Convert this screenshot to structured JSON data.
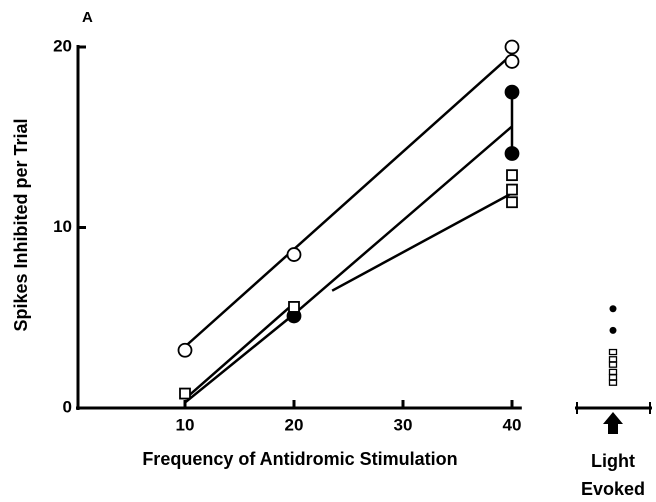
{
  "chart_data": {
    "type": "scatter",
    "panel_label": "A",
    "x_label": "Frequency of Antidromic Stimulation",
    "y_label": "Spikes Inhibited per Trial",
    "xlim": [
      0,
      42
    ],
    "ylim": [
      0,
      20
    ],
    "xticks": [
      10,
      20,
      30,
      40
    ],
    "yticks": [
      0,
      10,
      20
    ],
    "series": [
      {
        "marker": "line",
        "x": [
          10,
          40
        ],
        "values": [
          3.4,
          19.6
        ]
      },
      {
        "marker": "line",
        "x": [
          10,
          20,
          40
        ],
        "values": [
          0.3,
          5.2,
          15.6
        ]
      },
      {
        "marker": "line",
        "x": [
          10,
          20
        ],
        "values": [
          0.5,
          5.8
        ]
      },
      {
        "marker": "line",
        "x": [
          23.5,
          40
        ],
        "values": [
          6.5,
          11.9
        ]
      },
      {
        "marker": "line",
        "x": [
          40,
          40
        ],
        "values": [
          14.1,
          17.5
        ]
      },
      {
        "marker": "open-circle",
        "x": [
          10,
          20,
          40,
          40
        ],
        "values": [
          3.2,
          8.5,
          19.2,
          20
        ]
      },
      {
        "marker": "filled-circle",
        "x": [
          20,
          40,
          40
        ],
        "values": [
          5.1,
          17.5,
          14.1
        ]
      },
      {
        "marker": "open-square",
        "x": [
          10,
          20,
          40,
          40,
          40
        ],
        "values": [
          0.8,
          5.6,
          12.9,
          12.1,
          11.4
        ]
      }
    ],
    "light_evoked": {
      "label_lines": [
        "Light",
        "Evoked"
      ],
      "filled": [
        5.5,
        4.3
      ],
      "squares": [
        3.1,
        2.7,
        2.4,
        2.0,
        1.7,
        1.4
      ]
    }
  }
}
